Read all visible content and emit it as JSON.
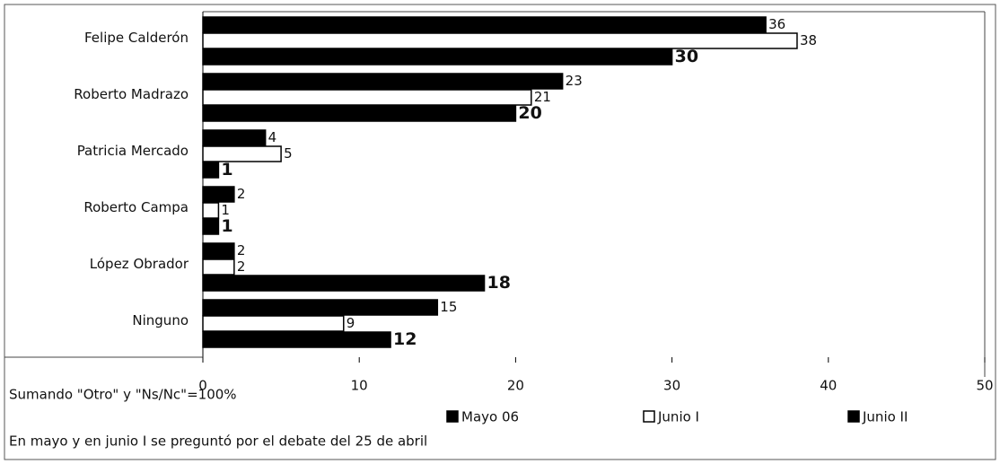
{
  "chart_data": {
    "type": "bar",
    "orientation": "horizontal",
    "categories": [
      "Felipe Calderón",
      "Roberto Madrazo",
      "Patricia Mercado",
      "Roberto Campa",
      "López Obrador",
      "Ninguno"
    ],
    "series": [
      {
        "name": "Mayo 06",
        "color": "#000000",
        "values": [
          36,
          23,
          4,
          2,
          2,
          15
        ]
      },
      {
        "name": "Junio I",
        "color": "#ffffff",
        "values": [
          38,
          21,
          5,
          1,
          2,
          9
        ]
      },
      {
        "name": "Junio II",
        "color": "#000000",
        "values": [
          30,
          20,
          1,
          1,
          18,
          12
        ]
      }
    ],
    "xlim": [
      0,
      50
    ],
    "xticks": [
      0,
      10,
      20,
      30,
      40,
      50
    ],
    "grid": false,
    "annotations": [
      "Sumando \"Otro\" y \"Ns/Nc\"=100%",
      "En mayo y en junio I se preguntó por el debate del 25 de abril"
    ]
  }
}
